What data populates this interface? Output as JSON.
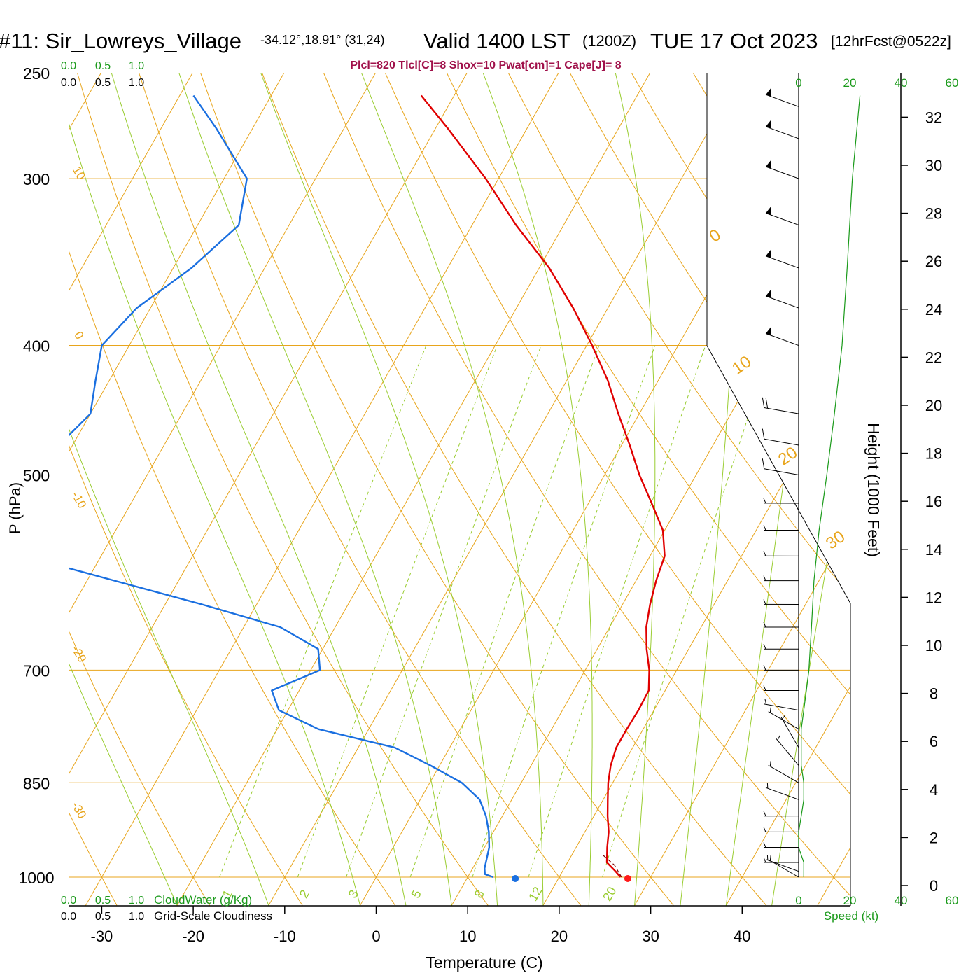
{
  "title": {
    "station": "#11: Sir_Lowreys_Village",
    "coords": "-34.12°,18.91° (31,24)",
    "valid": "Valid 1400 LST",
    "zulu": "(1200Z)",
    "date": "TUE 17 Oct 2023",
    "forecast": "[12hrFcst@0522z]"
  },
  "params": "Plcl=820 Tlcl[C]=8 Shox=10 Pwat[cm]=1 Cape[J]= 8",
  "colors": {
    "temperature": "#e00000",
    "dewpoint": "#1a6fe0",
    "isotherm": "#e8a51c",
    "dry_adiabat": "#e8a51c",
    "moist_adiabat": "#9acd32",
    "mixing_ratio": "#9acd32",
    "cloud": "#1a9a1a",
    "height": "#1a9a1a"
  },
  "chart_data": {
    "type": "line",
    "xlabel": "Temperature (C)",
    "ylabel": "P (hPa)",
    "xlim": [
      -34,
      36
    ],
    "ylim": [
      1000,
      250
    ],
    "x_ticks": [
      -30,
      -20,
      -10,
      0,
      10,
      20,
      30,
      40
    ],
    "pressure_ticks": [
      250,
      300,
      400,
      500,
      700,
      850,
      1000
    ],
    "skewed_isotherm_labels": [
      "10",
      "0",
      "-10",
      "-20",
      "-30"
    ],
    "dry_adiabat_labels": [
      "0",
      "10",
      "20",
      "30"
    ],
    "mixing_ratio_labels": [
      "1",
      "2",
      "3",
      "5",
      "8",
      "12",
      "20"
    ],
    "series": [
      {
        "name": "Temperature",
        "points": [
          [
            1000,
            26.7
          ],
          [
            990,
            25.8
          ],
          [
            975,
            24.3
          ],
          [
            950,
            23.4
          ],
          [
            925,
            22.6
          ],
          [
            900,
            21.5
          ],
          [
            875,
            20.5
          ],
          [
            850,
            19.5
          ],
          [
            825,
            18.7
          ],
          [
            800,
            18.2
          ],
          [
            775,
            18.2
          ],
          [
            750,
            18.3
          ],
          [
            725,
            18.2
          ],
          [
            700,
            17.0
          ],
          [
            675,
            15.4
          ],
          [
            650,
            14.0
          ],
          [
            625,
            13.0
          ],
          [
            600,
            12.2
          ],
          [
            575,
            11.6
          ],
          [
            550,
            9.8
          ],
          [
            525,
            6.9
          ],
          [
            500,
            3.8
          ],
          [
            475,
            0.9
          ],
          [
            450,
            -2.3
          ],
          [
            425,
            -5.5
          ],
          [
            400,
            -9.4
          ],
          [
            375,
            -13.8
          ],
          [
            350,
            -18.9
          ],
          [
            325,
            -25.2
          ],
          [
            300,
            -31.4
          ],
          [
            275,
            -38.7
          ],
          [
            260,
            -43.6
          ]
        ]
      },
      {
        "name": "Dewpoint",
        "points": [
          [
            1000,
            12.8
          ],
          [
            995,
            11.7
          ],
          [
            985,
            11.3
          ],
          [
            950,
            10.5
          ],
          [
            925,
            9.5
          ],
          [
            900,
            8.2
          ],
          [
            875,
            6.5
          ],
          [
            850,
            3.5
          ],
          [
            825,
            -1.0
          ],
          [
            800,
            -6.0
          ],
          [
            775,
            -15.5
          ],
          [
            750,
            -21.0
          ],
          [
            725,
            -23.0
          ],
          [
            700,
            -19.0
          ],
          [
            675,
            -20.5
          ],
          [
            650,
            -26.0
          ],
          [
            625,
            -36.0
          ],
          [
            600,
            -47.0
          ],
          [
            575,
            -58.5
          ],
          [
            550,
            -62.5
          ],
          [
            500,
            -64.0
          ],
          [
            475,
            -61.5
          ],
          [
            450,
            -60.0
          ],
          [
            425,
            -61.5
          ],
          [
            400,
            -63.0
          ],
          [
            375,
            -61.5
          ],
          [
            350,
            -58.0
          ],
          [
            325,
            -55.5
          ],
          [
            300,
            -57.5
          ],
          [
            275,
            -64.0
          ],
          [
            260,
            -68.5
          ]
        ]
      }
    ],
    "surface_temp_marker": 27.5,
    "surface_dewpoint_marker": 15.2,
    "wind_speed_axis": {
      "label": "Speed (kt)",
      "ticks": [
        0,
        20,
        40,
        60
      ]
    },
    "cloud_water_axis": {
      "label": "CloudWater (g/Kg)",
      "ticks": [
        "0.0",
        "0.5",
        "1.0"
      ]
    },
    "cloudiness_axis": {
      "label": "Grid-Scale Cloudiness",
      "ticks": [
        "0.0",
        "0.5",
        "1.0"
      ]
    },
    "height_axis": {
      "label": "Height (1000 Feet)",
      "ticks": [
        0,
        2,
        4,
        6,
        8,
        10,
        12,
        14,
        16,
        18,
        20,
        22,
        24,
        26,
        28,
        30,
        32
      ]
    },
    "wind_speed_profile": [
      [
        1000,
        2
      ],
      [
        975,
        2
      ],
      [
        950,
        0
      ],
      [
        925,
        0
      ],
      [
        900,
        1
      ],
      [
        875,
        2
      ],
      [
        850,
        2
      ],
      [
        825,
        1
      ],
      [
        800,
        1
      ],
      [
        775,
        1
      ],
      [
        750,
        2
      ],
      [
        725,
        3
      ],
      [
        700,
        4
      ],
      [
        650,
        5
      ],
      [
        600,
        6
      ],
      [
        550,
        8
      ],
      [
        500,
        11
      ],
      [
        450,
        14
      ],
      [
        400,
        17
      ],
      [
        350,
        19
      ],
      [
        300,
        21
      ],
      [
        260,
        24
      ]
    ],
    "wind_barbs": [
      {
        "p": 1000,
        "dir": 300,
        "spd": 5
      },
      {
        "p": 990,
        "dir": 290,
        "spd": 5
      },
      {
        "p": 975,
        "dir": 270,
        "spd": 5
      },
      {
        "p": 950,
        "dir": 270,
        "spd": 5
      },
      {
        "p": 925,
        "dir": 270,
        "spd": 5
      },
      {
        "p": 900,
        "dir": 270,
        "spd": 5
      },
      {
        "p": 875,
        "dir": 290,
        "spd": 5
      },
      {
        "p": 850,
        "dir": 300,
        "spd": 5
      },
      {
        "p": 825,
        "dir": 320,
        "spd": 5
      },
      {
        "p": 800,
        "dir": 330,
        "spd": 5
      },
      {
        "p": 775,
        "dir": 300,
        "spd": 5
      },
      {
        "p": 750,
        "dir": 280,
        "spd": 5
      },
      {
        "p": 725,
        "dir": 270,
        "spd": 5
      },
      {
        "p": 700,
        "dir": 270,
        "spd": 5
      },
      {
        "p": 675,
        "dir": 270,
        "spd": 5
      },
      {
        "p": 650,
        "dir": 270,
        "spd": 5
      },
      {
        "p": 625,
        "dir": 270,
        "spd": 5
      },
      {
        "p": 600,
        "dir": 270,
        "spd": 5
      },
      {
        "p": 575,
        "dir": 270,
        "spd": 5
      },
      {
        "p": 550,
        "dir": 270,
        "spd": 5
      },
      {
        "p": 525,
        "dir": 270,
        "spd": 5
      },
      {
        "p": 500,
        "dir": 280,
        "spd": 10
      },
      {
        "p": 475,
        "dir": 280,
        "spd": 10
      },
      {
        "p": 450,
        "dir": 280,
        "spd": 20
      },
      {
        "p": 400,
        "dir": 290,
        "spd": 50
      },
      {
        "p": 375,
        "dir": 290,
        "spd": 50
      },
      {
        "p": 350,
        "dir": 290,
        "spd": 50
      },
      {
        "p": 325,
        "dir": 290,
        "spd": 50
      },
      {
        "p": 300,
        "dir": 290,
        "spd": 50
      },
      {
        "p": 280,
        "dir": 290,
        "spd": 50
      },
      {
        "p": 265,
        "dir": 290,
        "spd": 50
      }
    ]
  }
}
